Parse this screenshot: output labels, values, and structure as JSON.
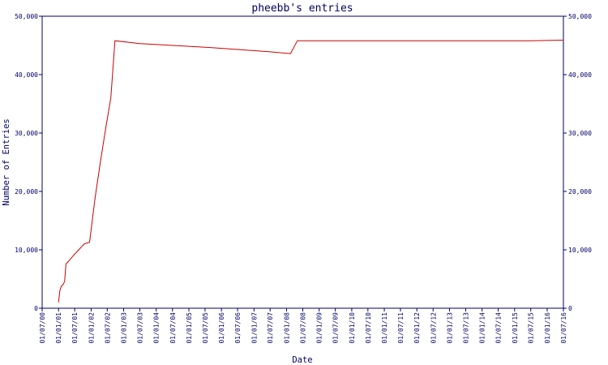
{
  "chart_data": {
    "type": "line",
    "title": "pheebb's entries",
    "xlabel": "Date",
    "ylabel": "Number of Entries",
    "ylim": [
      0,
      50000
    ],
    "xlim": [
      "2000-07-01",
      "2016-07-01"
    ],
    "grid": false,
    "legend": "none",
    "y_ticks": [
      {
        "value": 0,
        "label": "0"
      },
      {
        "value": 10000,
        "label": "10,000"
      },
      {
        "value": 20000,
        "label": "20,000"
      },
      {
        "value": 30000,
        "label": "30,000"
      },
      {
        "value": 40000,
        "label": "40,000"
      },
      {
        "value": 50000,
        "label": "50,000"
      }
    ],
    "x_ticks": [
      {
        "date": "2000-07-01",
        "label": "01/07/00"
      },
      {
        "date": "2001-01-01",
        "label": "01/01/01"
      },
      {
        "date": "2001-07-01",
        "label": "01/07/01"
      },
      {
        "date": "2002-01-01",
        "label": "01/01/02"
      },
      {
        "date": "2002-07-01",
        "label": "01/07/02"
      },
      {
        "date": "2003-01-01",
        "label": "01/01/03"
      },
      {
        "date": "2003-07-01",
        "label": "01/07/03"
      },
      {
        "date": "2004-01-01",
        "label": "01/01/04"
      },
      {
        "date": "2004-07-01",
        "label": "01/07/04"
      },
      {
        "date": "2005-01-01",
        "label": "01/01/05"
      },
      {
        "date": "2005-07-01",
        "label": "01/07/05"
      },
      {
        "date": "2006-01-01",
        "label": "01/01/06"
      },
      {
        "date": "2006-07-01",
        "label": "01/07/06"
      },
      {
        "date": "2007-01-01",
        "label": "01/01/07"
      },
      {
        "date": "2007-07-01",
        "label": "01/07/07"
      },
      {
        "date": "2008-01-01",
        "label": "01/01/08"
      },
      {
        "date": "2008-07-01",
        "label": "01/07/08"
      },
      {
        "date": "2009-01-01",
        "label": "01/01/09"
      },
      {
        "date": "2009-07-01",
        "label": "01/07/09"
      },
      {
        "date": "2010-01-01",
        "label": "01/01/10"
      },
      {
        "date": "2010-07-01",
        "label": "01/07/10"
      },
      {
        "date": "2011-01-01",
        "label": "01/01/11"
      },
      {
        "date": "2011-07-01",
        "label": "01/07/11"
      },
      {
        "date": "2012-01-01",
        "label": "01/01/12"
      },
      {
        "date": "2012-07-01",
        "label": "01/07/12"
      },
      {
        "date": "2013-01-01",
        "label": "01/01/13"
      },
      {
        "date": "2013-07-01",
        "label": "01/07/13"
      },
      {
        "date": "2014-01-01",
        "label": "01/01/14"
      },
      {
        "date": "2014-07-01",
        "label": "01/07/14"
      },
      {
        "date": "2015-01-01",
        "label": "01/01/15"
      },
      {
        "date": "2015-07-01",
        "label": "01/07/15"
      },
      {
        "date": "2016-01-01",
        "label": "01/01/16"
      },
      {
        "date": "2016-07-01",
        "label": "01/07/16"
      }
    ],
    "series": [
      {
        "color": "#cc0000",
        "points": [
          {
            "x": "2001-01-01",
            "y": 1000
          },
          {
            "x": "2001-01-15",
            "y": 3000
          },
          {
            "x": "2001-02-01",
            "y": 3800
          },
          {
            "x": "2001-02-20",
            "y": 4000
          },
          {
            "x": "2001-03-10",
            "y": 4600
          },
          {
            "x": "2001-03-25",
            "y": 7600
          },
          {
            "x": "2001-04-20",
            "y": 8000
          },
          {
            "x": "2001-06-15",
            "y": 9000
          },
          {
            "x": "2001-08-15",
            "y": 10000
          },
          {
            "x": "2001-10-15",
            "y": 11000
          },
          {
            "x": "2001-12-15",
            "y": 11300
          },
          {
            "x": "2002-02-15",
            "y": 19000
          },
          {
            "x": "2002-04-15",
            "y": 25000
          },
          {
            "x": "2002-06-15",
            "y": 31000
          },
          {
            "x": "2002-08-10",
            "y": 36000
          },
          {
            "x": "2002-09-25",
            "y": 45800
          },
          {
            "x": "2003-07-01",
            "y": 45300
          },
          {
            "x": "2004-07-01",
            "y": 45000
          },
          {
            "x": "2005-07-01",
            "y": 44700
          },
          {
            "x": "2006-07-01",
            "y": 44300
          },
          {
            "x": "2007-07-01",
            "y": 43900
          },
          {
            "x": "2008-02-15",
            "y": 43600
          },
          {
            "x": "2008-05-01",
            "y": 45800
          },
          {
            "x": "2012-07-01",
            "y": 45800
          },
          {
            "x": "2015-07-01",
            "y": 45800
          },
          {
            "x": "2016-07-01",
            "y": 45900
          }
        ]
      }
    ]
  }
}
